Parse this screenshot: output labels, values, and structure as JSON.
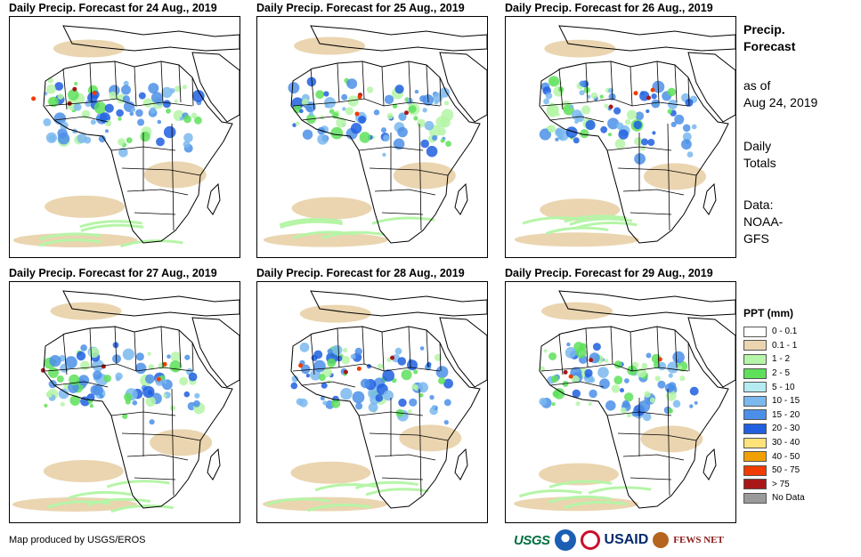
{
  "panels": [
    {
      "title": "Daily Precip. Forecast for 24 Aug., 2019"
    },
    {
      "title": "Daily Precip. Forecast for 25 Aug., 2019"
    },
    {
      "title": "Daily Precip. Forecast for 26 Aug., 2019"
    },
    {
      "title": "Daily Precip. Forecast for 27 Aug., 2019"
    },
    {
      "title": "Daily Precip. Forecast for 28 Aug., 2019"
    },
    {
      "title": "Daily Precip. Forecast for 29 Aug., 2019"
    }
  ],
  "side": {
    "title_line1": "Precip.",
    "title_line2": "Forecast",
    "asof_line1": "as of",
    "asof_line2": "Aug 24, 2019",
    "daily_line1": "Daily",
    "daily_line2": "Totals",
    "data_line1": "Data:",
    "data_line2": "NOAA-",
    "data_line3": "GFS"
  },
  "legend": {
    "title": "PPT (mm)",
    "items": [
      {
        "label": "0 - 0.1",
        "color": "#ffffff"
      },
      {
        "label": "0.1 - 1",
        "color": "#ead5b0"
      },
      {
        "label": "1 - 2",
        "color": "#b5f5a7"
      },
      {
        "label": "2 - 5",
        "color": "#5ee05a"
      },
      {
        "label": "5 - 10",
        "color": "#b4ecf2"
      },
      {
        "label": "10 - 15",
        "color": "#7ab8ee"
      },
      {
        "label": "15 - 20",
        "color": "#4c8fe8"
      },
      {
        "label": "20 - 30",
        "color": "#1f5fe0"
      },
      {
        "label": "30 - 40",
        "color": "#fde37a"
      },
      {
        "label": "40 - 50",
        "color": "#f2a000"
      },
      {
        "label": "50 - 75",
        "color": "#f03c00"
      },
      {
        "label": "> 75",
        "color": "#a81818"
      },
      {
        "label": "No Data",
        "color": "#9a9a9a"
      }
    ]
  },
  "credit": "Map produced by USGS/EROS",
  "logos": {
    "usgs": "USGS",
    "usaid": "USAID",
    "fews": "FEWS NET"
  }
}
